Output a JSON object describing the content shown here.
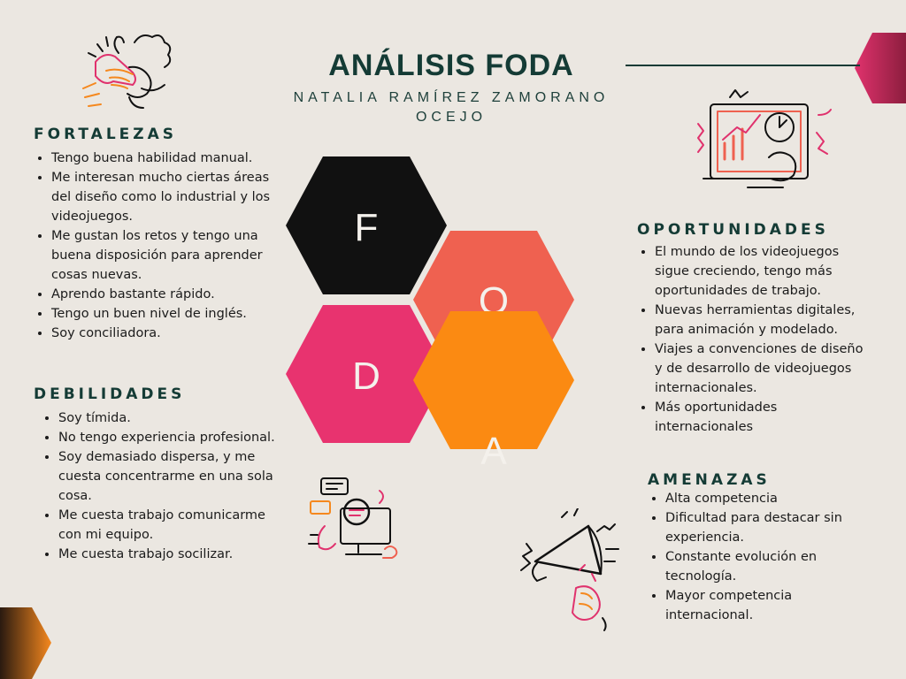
{
  "title": "ANÁLISIS FODA",
  "author": "NATALIA RAMÍREZ ZAMORANO OCEJO",
  "hexagons": {
    "f": "F",
    "o": "O",
    "d": "D",
    "a": "A"
  },
  "colors": {
    "background": "#ebe7e1",
    "title": "#143b35",
    "hex_f": "#111111",
    "hex_o": "#ef6150",
    "hex_d": "#e8336f",
    "hex_a": "#fb8a12",
    "accent_pink": "#e0326d",
    "accent_orange": "#f5881e"
  },
  "fortalezas": {
    "heading": "FORTALEZAS",
    "items": [
      "Tengo buena habilidad manual.",
      "Me interesan mucho ciertas áreas del diseño como lo industrial y los videojuegos.",
      "Me gustan los retos y tengo una buena disposición para aprender cosas nuevas.",
      "Aprendo bastante rápido.",
      "Tengo un buen nivel de inglés.",
      "Soy conciliadora."
    ]
  },
  "debilidades": {
    "heading": "DEBILIDADES",
    "items": [
      "Soy tímida.",
      "No tengo experiencia profesional.",
      "Soy demasiado dispersa, y me cuesta concentrarme en una sola cosa.",
      "Me cuesta trabajo comunicarme con mi equipo.",
      "Me cuesta trabajo socilizar."
    ]
  },
  "oportunidades": {
    "heading": "OPORTUNIDADES",
    "items": [
      "El mundo de los videojuegos sigue creciendo, tengo más oportunidades de trabajo.",
      "Nuevas herramientas digitales, para animación y modelado.",
      "Viajes a convenciones de diseño y de desarrollo de videojuegos internacionales.",
      "Más oportunidades internacionales"
    ]
  },
  "amenazas": {
    "heading": "AMENAZAS",
    "items": [
      "Alta competencia",
      "Dificultad para destacar sin experiencia.",
      "Constante evolución en tecnología.",
      "Mayor competencia internacional."
    ]
  },
  "icons": [
    "hands-clap-icon",
    "chart-presentation-icon",
    "computer-search-icon",
    "megaphone-icon"
  ]
}
